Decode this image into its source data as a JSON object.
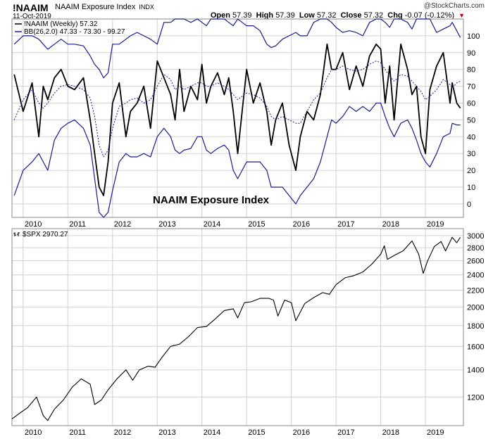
{
  "header": {
    "symbol": "!NAAIM",
    "name": "NAAIM Exposure Index",
    "exchange": "INDX",
    "date": "11-Oct-2019",
    "copyright": "@StockCharts.com",
    "open_label": "Open",
    "open": "57.39",
    "high_label": "High",
    "high": "57.39",
    "low_label": "Low",
    "low": "57.32",
    "close_label": "Close",
    "close": "57.32",
    "chg_label": "Chg",
    "chg": "-0.07 (-0.12%)",
    "chg_color": "#c00000"
  },
  "chart_data": [
    {
      "type": "line",
      "title": "NAAIM Exposure Index",
      "legend": [
        {
          "label": "!NAAIM (Weekly) 57.32",
          "style": "solid",
          "color": "#000000"
        },
        {
          "label": "BB(26,2.0) 47.33 - 73.30 - 99.27",
          "style": "solid",
          "color": "#1a1a8c"
        }
      ],
      "annotation": "NAAIM Exposure Index",
      "ylim": [
        -8,
        110
      ],
      "yticks": [
        0,
        10,
        20,
        30,
        40,
        50,
        60,
        70,
        80,
        90,
        100
      ],
      "xlim": [
        2009.75,
        2019.85
      ],
      "xticks": [
        "2010",
        "2011",
        "2012",
        "2013",
        "2014",
        "2015",
        "2016",
        "2017",
        "2018",
        "2019"
      ],
      "x": [
        2009.8,
        2010.0,
        2010.2,
        2010.35,
        2010.45,
        2010.55,
        2010.7,
        2010.85,
        2011.0,
        2011.15,
        2011.35,
        2011.5,
        2011.6,
        2011.7,
        2011.8,
        2011.9,
        2012.0,
        2012.15,
        2012.3,
        2012.4,
        2012.55,
        2012.7,
        2012.85,
        2013.0,
        2013.15,
        2013.3,
        2013.4,
        2013.5,
        2013.6,
        2013.75,
        2013.9,
        2014.0,
        2014.1,
        2014.2,
        2014.35,
        2014.5,
        2014.6,
        2014.7,
        2014.8,
        2014.9,
        2015.0,
        2015.15,
        2015.3,
        2015.45,
        2015.55,
        2015.65,
        2015.8,
        2015.95,
        2016.1,
        2016.2,
        2016.35,
        2016.5,
        2016.65,
        2016.8,
        2016.9,
        2017.0,
        2017.15,
        2017.3,
        2017.45,
        2017.6,
        2017.75,
        2017.9,
        2018.0,
        2018.1,
        2018.2,
        2018.3,
        2018.45,
        2018.6,
        2018.7,
        2018.8,
        2018.9,
        2019.0,
        2019.1,
        2019.25,
        2019.4,
        2019.55,
        2019.6,
        2019.7,
        2019.78
      ],
      "series": [
        {
          "name": "NAAIM",
          "values": [
            77,
            55,
            72,
            40,
            70,
            62,
            75,
            80,
            70,
            68,
            75,
            50,
            30,
            10,
            5,
            25,
            60,
            72,
            40,
            55,
            60,
            70,
            45,
            85,
            75,
            65,
            50,
            80,
            55,
            70,
            62,
            83,
            60,
            70,
            78,
            65,
            75,
            55,
            30,
            55,
            80,
            60,
            72,
            55,
            35,
            50,
            60,
            35,
            20,
            40,
            55,
            50,
            65,
            95,
            80,
            80,
            90,
            68,
            82,
            70,
            88,
            95,
            92,
            60,
            82,
            50,
            95,
            80,
            65,
            70,
            40,
            30,
            68,
            82,
            90,
            60,
            72,
            60,
            57
          ]
        },
        {
          "name": "BB Upper",
          "values": [
            95,
            100,
            100,
            98,
            95,
            92,
            95,
            98,
            95,
            95,
            94,
            88,
            83,
            80,
            75,
            78,
            95,
            95,
            98,
            100,
            102,
            100,
            98,
            95,
            108,
            108,
            110,
            112,
            110,
            108,
            110,
            108,
            106,
            110,
            112,
            110,
            108,
            106,
            110,
            108,
            106,
            106,
            103,
            95,
            93,
            94,
            98,
            100,
            102,
            100,
            100,
            108,
            110,
            110,
            108,
            105,
            102,
            103,
            102,
            100,
            108,
            110,
            110,
            108,
            105,
            110,
            110,
            108,
            104,
            110,
            112,
            112,
            110,
            102,
            104,
            106,
            108,
            103,
            99
          ]
        },
        {
          "name": "BB Middle",
          "values": [
            50,
            62,
            68,
            60,
            57,
            60,
            66,
            70,
            71,
            70,
            68,
            63,
            52,
            35,
            28,
            32,
            45,
            58,
            60,
            62,
            63,
            60,
            62,
            70,
            77,
            74,
            68,
            70,
            68,
            70,
            72,
            72,
            70,
            70,
            72,
            70,
            68,
            65,
            62,
            64,
            66,
            65,
            63,
            58,
            52,
            50,
            52,
            50,
            48,
            48,
            55,
            62,
            66,
            75,
            80,
            80,
            82,
            80,
            79,
            80,
            83,
            85,
            84,
            80,
            76,
            73,
            77,
            76,
            73,
            70,
            67,
            62,
            64,
            68,
            74,
            71,
            69,
            72,
            73
          ]
        },
        {
          "name": "BB Lower",
          "values": [
            5,
            20,
            25,
            30,
            25,
            20,
            38,
            45,
            48,
            50,
            45,
            35,
            15,
            -5,
            -8,
            -5,
            8,
            25,
            30,
            28,
            28,
            30,
            28,
            40,
            45,
            40,
            32,
            30,
            32,
            33,
            40,
            40,
            32,
            30,
            33,
            35,
            32,
            20,
            15,
            20,
            25,
            25,
            25,
            20,
            10,
            10,
            10,
            5,
            0,
            5,
            10,
            15,
            25,
            40,
            50,
            48,
            52,
            58,
            55,
            58,
            55,
            60,
            60,
            52,
            45,
            40,
            48,
            50,
            45,
            38,
            30,
            25,
            22,
            30,
            40,
            42,
            48,
            47,
            47
          ]
        }
      ]
    },
    {
      "type": "line",
      "title": "$SPX 2970.27",
      "legend": [
        {
          "label": "$SPX 2970.27",
          "style": "bar",
          "color": "#000000"
        }
      ],
      "ylim": [
        1020,
        3120
      ],
      "yticks": [
        1200,
        1400,
        1600,
        1800,
        2000,
        2200,
        2400,
        2600,
        2800,
        3000
      ],
      "xlim": [
        2009.75,
        2019.85
      ],
      "xticks": [
        "2010",
        "2011",
        "2012",
        "2013",
        "2014",
        "2015",
        "2016",
        "2017",
        "2018",
        "2019"
      ],
      "x": [
        2009.75,
        2009.95,
        2010.1,
        2010.3,
        2010.45,
        2010.55,
        2010.7,
        2010.9,
        2011.1,
        2011.3,
        2011.5,
        2011.6,
        2011.75,
        2011.9,
        2012.1,
        2012.3,
        2012.45,
        2012.6,
        2012.8,
        2012.95,
        2013.1,
        2013.3,
        2013.5,
        2013.7,
        2013.9,
        2014.1,
        2014.3,
        2014.5,
        2014.7,
        2014.8,
        2014.95,
        2015.1,
        2015.3,
        2015.5,
        2015.6,
        2015.7,
        2015.85,
        2016.0,
        2016.1,
        2016.3,
        2016.5,
        2016.7,
        2016.85,
        2017.0,
        2017.2,
        2017.4,
        2017.6,
        2017.8,
        2018.0,
        2018.08,
        2018.15,
        2018.3,
        2018.5,
        2018.7,
        2018.85,
        2018.95,
        2019.05,
        2019.2,
        2019.35,
        2019.45,
        2019.6,
        2019.7,
        2019.78
      ],
      "series": [
        {
          "name": "SPX",
          "values": [
            1060,
            1100,
            1130,
            1200,
            1080,
            1050,
            1120,
            1180,
            1270,
            1330,
            1290,
            1150,
            1180,
            1250,
            1330,
            1400,
            1320,
            1400,
            1430,
            1420,
            1500,
            1600,
            1620,
            1690,
            1780,
            1790,
            1870,
            1960,
            1980,
            1880,
            2050,
            2060,
            2100,
            2100,
            2080,
            1900,
            2080,
            2050,
            1850,
            2040,
            2110,
            2170,
            2150,
            2270,
            2360,
            2390,
            2440,
            2550,
            2700,
            2830,
            2620,
            2680,
            2750,
            2910,
            2700,
            2420,
            2600,
            2820,
            2900,
            2750,
            2970,
            2880,
            2970
          ]
        }
      ]
    }
  ]
}
